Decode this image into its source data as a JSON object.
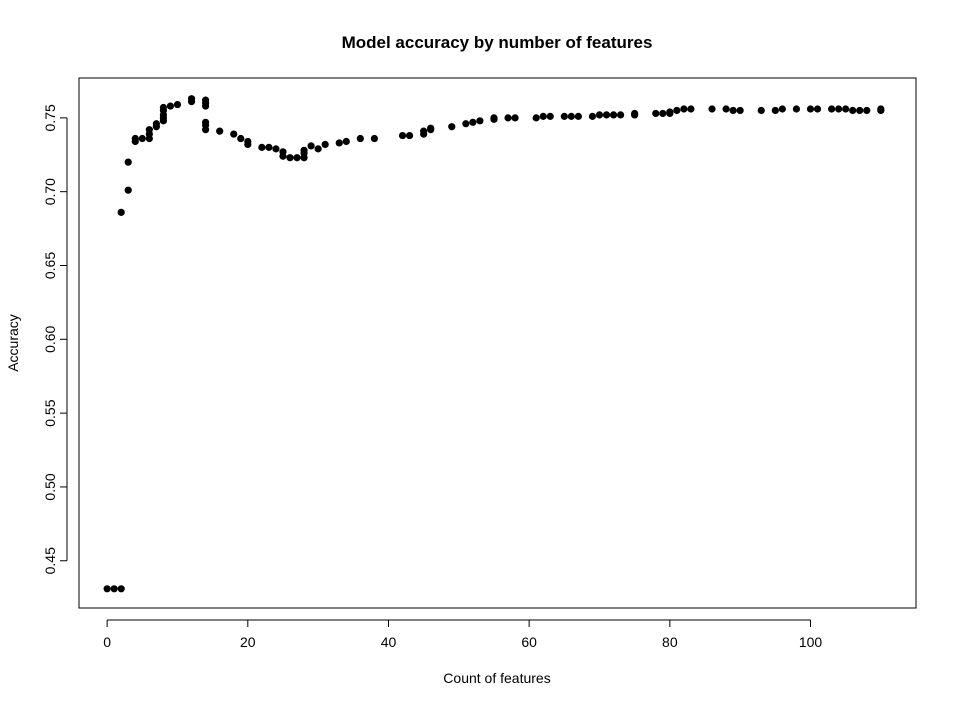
{
  "chart_data": {
    "type": "scatter",
    "title": "Model accuracy by number of features",
    "xlabel": "Count of features",
    "ylabel": "Accuracy",
    "xlim": [
      -4,
      115
    ],
    "ylim": [
      0.418,
      0.777
    ],
    "x_ticks": [
      0,
      20,
      40,
      60,
      80,
      100
    ],
    "y_ticks": [
      0.45,
      0.5,
      0.55,
      0.6,
      0.65,
      0.7,
      0.75
    ],
    "grid": false,
    "legend": "none",
    "point_color": "#000000",
    "points": [
      [
        0,
        0.431
      ],
      [
        1,
        0.431
      ],
      [
        2,
        0.431
      ],
      [
        2,
        0.686
      ],
      [
        3,
        0.701
      ],
      [
        3,
        0.72
      ],
      [
        4,
        0.734
      ],
      [
        4,
        0.736
      ],
      [
        5,
        0.736
      ],
      [
        6,
        0.736
      ],
      [
        6,
        0.739
      ],
      [
        6,
        0.742
      ],
      [
        7,
        0.744
      ],
      [
        7,
        0.746
      ],
      [
        8,
        0.748
      ],
      [
        8,
        0.75
      ],
      [
        8,
        0.752
      ],
      [
        8,
        0.755
      ],
      [
        8,
        0.757
      ],
      [
        9,
        0.758
      ],
      [
        10,
        0.759
      ],
      [
        12,
        0.761
      ],
      [
        12,
        0.763
      ],
      [
        14,
        0.758
      ],
      [
        14,
        0.76
      ],
      [
        14,
        0.762
      ],
      [
        14,
        0.747
      ],
      [
        14,
        0.745
      ],
      [
        14,
        0.742
      ],
      [
        16,
        0.741
      ],
      [
        18,
        0.739
      ],
      [
        19,
        0.736
      ],
      [
        20,
        0.734
      ],
      [
        20,
        0.732
      ],
      [
        22,
        0.73
      ],
      [
        23,
        0.73
      ],
      [
        24,
        0.729
      ],
      [
        25,
        0.727
      ],
      [
        25,
        0.724
      ],
      [
        26,
        0.723
      ],
      [
        27,
        0.723
      ],
      [
        28,
        0.723
      ],
      [
        28,
        0.726
      ],
      [
        28,
        0.728
      ],
      [
        29,
        0.731
      ],
      [
        30,
        0.729
      ],
      [
        31,
        0.732
      ],
      [
        33,
        0.733
      ],
      [
        34,
        0.734
      ],
      [
        36,
        0.736
      ],
      [
        38,
        0.736
      ],
      [
        42,
        0.738
      ],
      [
        43,
        0.738
      ],
      [
        45,
        0.739
      ],
      [
        45,
        0.741
      ],
      [
        46,
        0.742
      ],
      [
        46,
        0.743
      ],
      [
        49,
        0.744
      ],
      [
        51,
        0.746
      ],
      [
        52,
        0.747
      ],
      [
        53,
        0.748
      ],
      [
        55,
        0.749
      ],
      [
        55,
        0.75
      ],
      [
        57,
        0.75
      ],
      [
        58,
        0.75
      ],
      [
        61,
        0.75
      ],
      [
        62,
        0.751
      ],
      [
        63,
        0.751
      ],
      [
        65,
        0.751
      ],
      [
        66,
        0.751
      ],
      [
        67,
        0.751
      ],
      [
        69,
        0.751
      ],
      [
        70,
        0.752
      ],
      [
        71,
        0.752
      ],
      [
        72,
        0.752
      ],
      [
        73,
        0.752
      ],
      [
        75,
        0.752
      ],
      [
        75,
        0.753
      ],
      [
        78,
        0.753
      ],
      [
        79,
        0.753
      ],
      [
        80,
        0.753
      ],
      [
        80,
        0.754
      ],
      [
        81,
        0.755
      ],
      [
        82,
        0.756
      ],
      [
        83,
        0.756
      ],
      [
        86,
        0.756
      ],
      [
        88,
        0.756
      ],
      [
        89,
        0.755
      ],
      [
        90,
        0.755
      ],
      [
        93,
        0.755
      ],
      [
        95,
        0.755
      ],
      [
        96,
        0.756
      ],
      [
        98,
        0.756
      ],
      [
        100,
        0.756
      ],
      [
        101,
        0.756
      ],
      [
        103,
        0.756
      ],
      [
        104,
        0.756
      ],
      [
        105,
        0.756
      ],
      [
        106,
        0.755
      ],
      [
        107,
        0.755
      ],
      [
        108,
        0.755
      ],
      [
        110,
        0.755
      ],
      [
        110,
        0.756
      ]
    ]
  }
}
